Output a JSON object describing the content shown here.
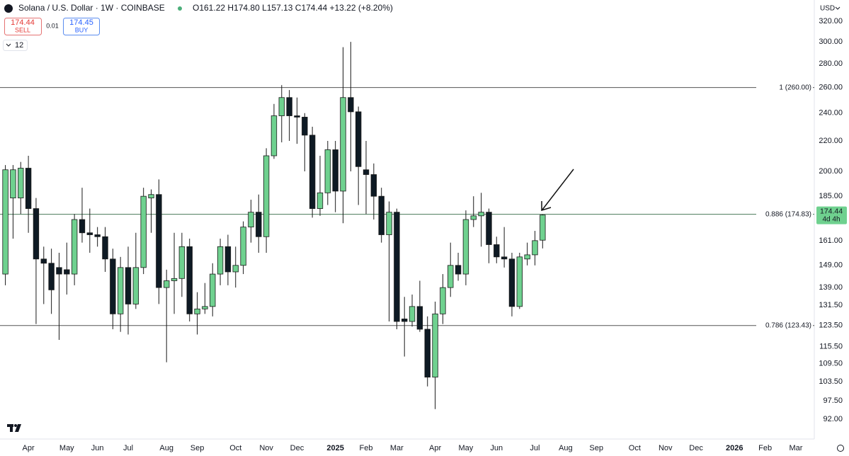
{
  "header": {
    "symbol": "Solana / U.S. Dollar · 1W · COINBASE",
    "ohlc": "O161.22 H174.80 L157.13 C174.44 +13.22 (+8.20%)",
    "sell_price": "174.44",
    "sell_label": "SELL",
    "spread": "0.01",
    "buy_price": "174.45",
    "buy_label": "BUY",
    "indicator_count": "12",
    "currency": "USD"
  },
  "chart_data": {
    "type": "candlestick",
    "log_scale": true,
    "up_color": "#6fd18f",
    "down_color": "#0e1a24",
    "open": [
      145,
      184,
      184,
      202,
      178,
      152,
      150,
      148,
      147,
      145,
      172,
      165,
      164,
      163,
      152,
      128,
      148,
      132,
      148,
      184,
      186,
      139,
      142,
      143,
      158,
      128,
      130,
      131,
      145,
      158,
      146,
      149,
      168,
      176,
      163,
      210,
      238,
      252,
      238,
      237,
      224,
      178,
      187,
      214,
      188,
      252,
      241,
      201,
      198,
      185,
      164,
      176,
      126,
      125,
      131,
      122,
      105,
      128,
      139,
      149,
      145,
      172,
      174,
      176,
      159,
      153,
      152,
      131,
      152,
      154,
      161.22
    ],
    "high": [
      204,
      204,
      206,
      210,
      184,
      158,
      157,
      155,
      160,
      175,
      190,
      178,
      168,
      168,
      157,
      153,
      158,
      165,
      190,
      189,
      195,
      147,
      165,
      165,
      162,
      137,
      141,
      150,
      162,
      164,
      158,
      171,
      183,
      186,
      215,
      247,
      262,
      258,
      252,
      240,
      230,
      210,
      220,
      220,
      295,
      300,
      245,
      220,
      205,
      190,
      182,
      178,
      135,
      136,
      142,
      127,
      133,
      145,
      160,
      155,
      177,
      185,
      187,
      178,
      163,
      168,
      155,
      155,
      160,
      166,
      174.8
    ],
    "low": [
      140,
      162,
      175,
      165,
      124,
      132,
      128,
      118,
      136,
      140,
      160,
      155,
      158,
      146,
      122,
      121,
      120,
      130,
      145,
      165,
      132,
      110,
      128,
      135,
      125,
      120,
      128,
      127,
      140,
      140,
      139,
      145,
      160,
      155,
      155,
      208,
      219,
      220,
      218,
      200,
      173,
      174,
      180,
      176,
      170,
      200,
      180,
      175,
      172,
      160,
      125,
      122,
      112,
      123,
      121,
      102,
      95,
      124,
      135,
      142,
      140,
      168,
      158,
      150,
      150,
      148,
      127,
      130,
      149,
      149,
      157.13
    ],
    "close": [
      201,
      201,
      202,
      178,
      152,
      150,
      138,
      145,
      145,
      172,
      165,
      164,
      163,
      152,
      128,
      148,
      132,
      148,
      185,
      186,
      139,
      142,
      143,
      158,
      128,
      130,
      131,
      145,
      158,
      146,
      149,
      168,
      176,
      163,
      210,
      238,
      252,
      238,
      237,
      224,
      178,
      187,
      214,
      188,
      252,
      241,
      203,
      198,
      185,
      164,
      176,
      125,
      125,
      131,
      122,
      105,
      128,
      139,
      149,
      145,
      172,
      174,
      176,
      159,
      153,
      152,
      131,
      153,
      154,
      161,
      174.44
    ],
    "countdown": "4d 4h",
    "xlim": [
      -0.7,
      105.4
    ],
    "xticks": [
      {
        "value": 3,
        "label": "Apr"
      },
      {
        "value": 8,
        "label": "May"
      },
      {
        "value": 12,
        "label": "Jun"
      },
      {
        "value": 16,
        "label": "Jul"
      },
      {
        "value": 21,
        "label": "Aug"
      },
      {
        "value": 25,
        "label": "Sep"
      },
      {
        "value": 30,
        "label": "Oct"
      },
      {
        "value": 34,
        "label": "Nov"
      },
      {
        "value": 38,
        "label": "Dec"
      },
      {
        "value": 43,
        "label": "2025"
      },
      {
        "value": 47,
        "label": "Feb"
      },
      {
        "value": 51,
        "label": "Mar"
      },
      {
        "value": 56,
        "label": "Apr"
      },
      {
        "value": 60,
        "label": "May"
      },
      {
        "value": 64,
        "label": "Jun"
      },
      {
        "value": 69,
        "label": "Jul"
      },
      {
        "value": 73,
        "label": "Aug"
      },
      {
        "value": 77,
        "label": "Sep"
      },
      {
        "value": 82,
        "label": "Oct"
      },
      {
        "value": 86,
        "label": "Nov"
      },
      {
        "value": 90,
        "label": "Dec"
      },
      {
        "value": 95,
        "label": "2026"
      },
      {
        "value": 99,
        "label": "Feb"
      },
      {
        "value": 103,
        "label": "Mar"
      }
    ],
    "ylim": [
      86.9,
      342
    ],
    "yticks": [
      {
        "value": 320,
        "label": "320.00"
      },
      {
        "value": 300,
        "label": "300.00"
      },
      {
        "value": 280,
        "label": "280.00"
      },
      {
        "value": 260,
        "label": "260.00"
      },
      {
        "value": 240,
        "label": "240.00"
      },
      {
        "value": 220,
        "label": "220.00"
      },
      {
        "value": 200,
        "label": "200.00"
      },
      {
        "value": 185,
        "label": "185.00"
      },
      {
        "value": 161,
        "label": "161.00"
      },
      {
        "value": 149,
        "label": "149.00"
      },
      {
        "value": 139,
        "label": "139.00"
      },
      {
        "value": 131.5,
        "label": "131.50"
      },
      {
        "value": 123.5,
        "label": "123.50"
      },
      {
        "value": 115.5,
        "label": "115.50"
      },
      {
        "value": 109.5,
        "label": "109.50"
      },
      {
        "value": 103.5,
        "label": "103.50"
      },
      {
        "value": 97.5,
        "label": "97.50"
      },
      {
        "value": 92,
        "label": "92.00"
      }
    ],
    "levels": [
      {
        "value": 260,
        "label": "1 (260.00)",
        "color": "#555555"
      },
      {
        "value": 174.83,
        "label": "0.886 (174.83)",
        "color": "#4a7a5a"
      },
      {
        "value": 123.43,
        "label": "0.786 (123.43)",
        "color": "#555555"
      }
    ]
  }
}
